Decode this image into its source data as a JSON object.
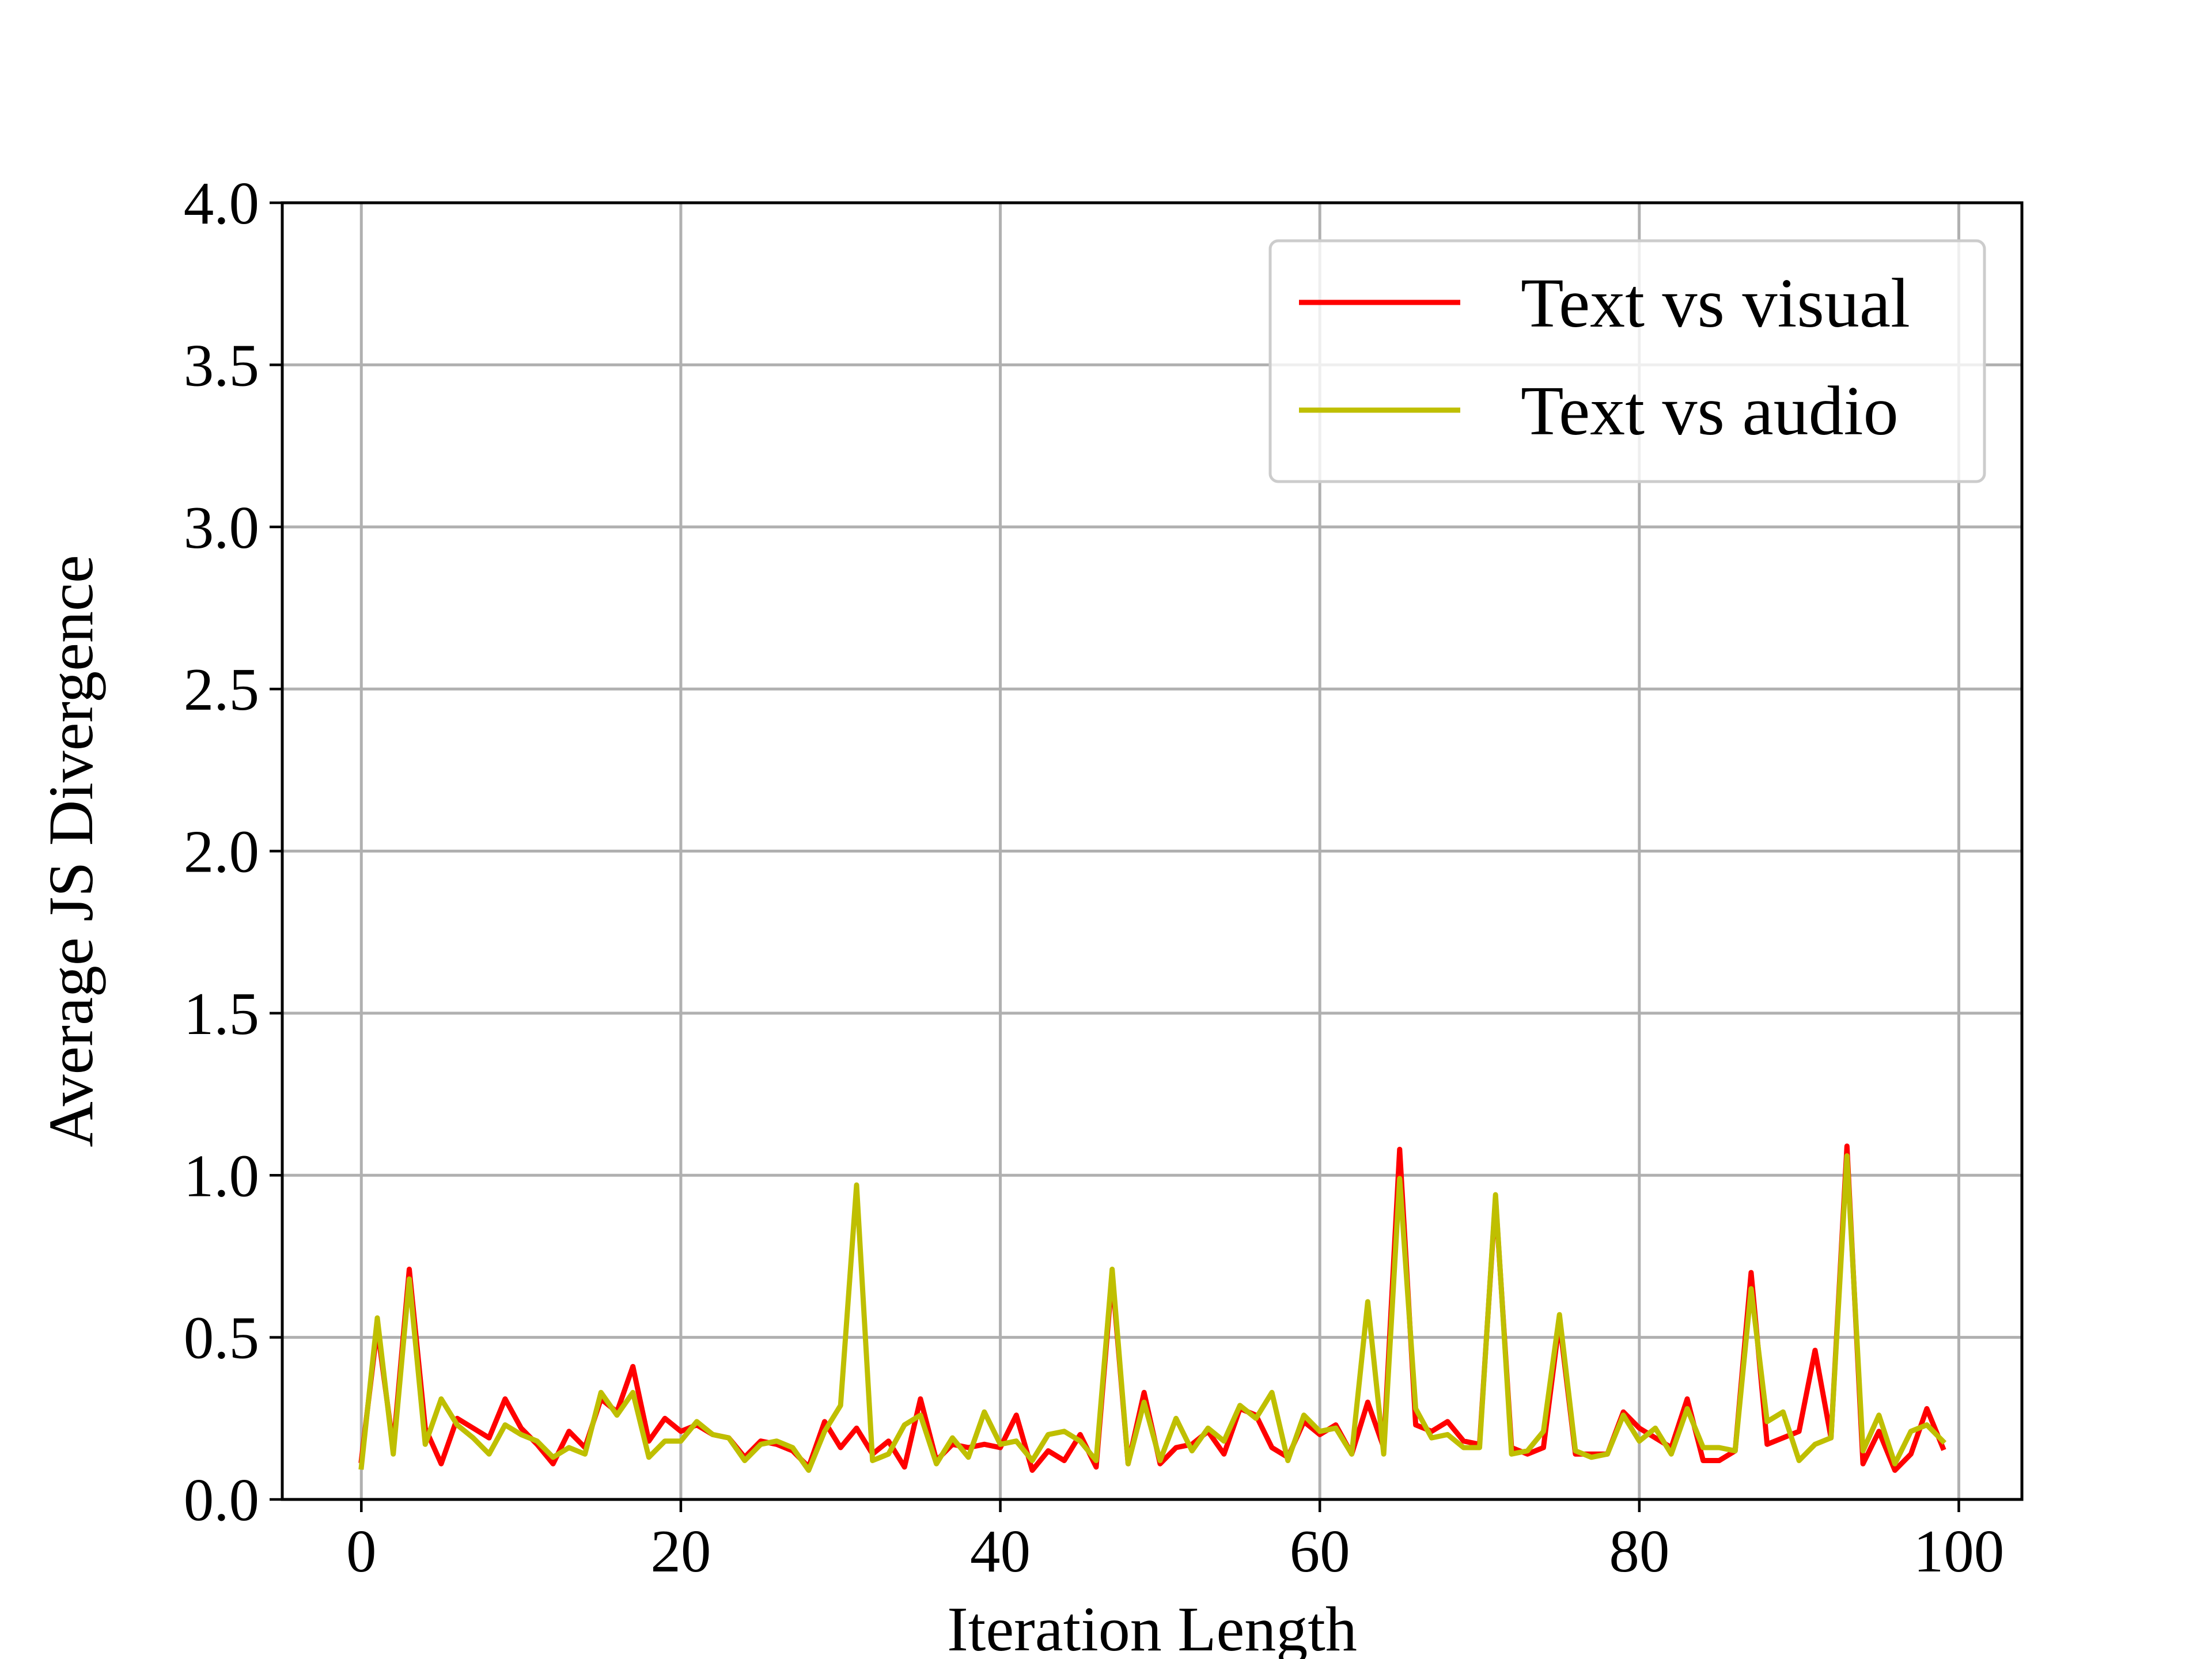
{
  "chart_data": {
    "type": "line",
    "title": "",
    "xlabel": "Iteration Length",
    "ylabel": "Average JS Divergence",
    "xlim": [
      -4.95,
      103.95
    ],
    "ylim": [
      0.0,
      4.0
    ],
    "xticks": [
      0,
      20,
      40,
      60,
      80,
      100
    ],
    "xtick_labels": [
      "0",
      "20",
      "40",
      "60",
      "80",
      "100"
    ],
    "yticks": [
      0.0,
      0.5,
      1.0,
      1.5,
      2.0,
      2.5,
      3.0,
      3.5,
      4.0
    ],
    "ytick_labels": [
      "0.0",
      "0.5",
      "1.0",
      "1.5",
      "2.0",
      "2.5",
      "3.0",
      "3.5",
      "4.0"
    ],
    "grid": true,
    "legend_position": "top-right",
    "x": [
      0,
      1,
      2,
      3,
      4,
      5,
      6,
      7,
      8,
      9,
      10,
      11,
      12,
      13,
      14,
      15,
      16,
      17,
      18,
      19,
      20,
      21,
      22,
      23,
      24,
      25,
      26,
      27,
      28,
      29,
      30,
      31,
      32,
      33,
      34,
      35,
      36,
      37,
      38,
      39,
      40,
      41,
      42,
      43,
      44,
      45,
      46,
      47,
      48,
      49,
      50,
      51,
      52,
      53,
      54,
      55,
      56,
      57,
      58,
      59,
      60,
      61,
      62,
      63,
      64,
      65,
      66,
      67,
      68,
      69,
      70,
      71,
      72,
      73,
      74,
      75,
      76,
      77,
      78,
      79,
      80,
      81,
      82,
      83,
      84,
      85,
      86,
      87,
      88,
      89,
      90,
      91,
      92,
      93,
      94,
      95,
      96,
      97,
      98,
      99
    ],
    "series": [
      {
        "name": "Text vs visual",
        "color": "#ff0000",
        "values": [
          0.12,
          0.53,
          0.16,
          0.71,
          0.22,
          0.11,
          0.25,
          0.22,
          0.19,
          0.31,
          0.22,
          0.17,
          0.11,
          0.21,
          0.16,
          0.31,
          0.27,
          0.41,
          0.18,
          0.25,
          0.21,
          0.23,
          0.2,
          0.19,
          0.13,
          0.18,
          0.17,
          0.15,
          0.1,
          0.24,
          0.16,
          0.22,
          0.14,
          0.18,
          0.1,
          0.31,
          0.12,
          0.17,
          0.16,
          0.17,
          0.16,
          0.26,
          0.09,
          0.15,
          0.12,
          0.2,
          0.1,
          0.69,
          0.11,
          0.33,
          0.11,
          0.16,
          0.17,
          0.21,
          0.14,
          0.28,
          0.26,
          0.16,
          0.13,
          0.24,
          0.2,
          0.23,
          0.14,
          0.3,
          0.16,
          1.08,
          0.23,
          0.21,
          0.24,
          0.18,
          0.17,
          0.93,
          0.16,
          0.14,
          0.16,
          0.55,
          0.14,
          0.14,
          0.14,
          0.27,
          0.22,
          0.19,
          0.16,
          0.31,
          0.12,
          0.12,
          0.15,
          0.7,
          0.17,
          0.19,
          0.21,
          0.46,
          0.19,
          1.09,
          0.11,
          0.21,
          0.09,
          0.14,
          0.28,
          0.16
        ]
      },
      {
        "name": "Text vs audio",
        "color": "#bfbf00",
        "values": [
          0.1,
          0.56,
          0.14,
          0.68,
          0.17,
          0.31,
          0.23,
          0.19,
          0.14,
          0.23,
          0.2,
          0.18,
          0.13,
          0.16,
          0.14,
          0.33,
          0.26,
          0.33,
          0.13,
          0.18,
          0.18,
          0.24,
          0.2,
          0.19,
          0.12,
          0.17,
          0.18,
          0.16,
          0.09,
          0.21,
          0.29,
          0.97,
          0.12,
          0.14,
          0.23,
          0.26,
          0.11,
          0.19,
          0.13,
          0.27,
          0.17,
          0.18,
          0.12,
          0.2,
          0.21,
          0.18,
          0.12,
          0.71,
          0.11,
          0.3,
          0.12,
          0.25,
          0.15,
          0.22,
          0.18,
          0.29,
          0.25,
          0.33,
          0.12,
          0.26,
          0.21,
          0.22,
          0.14,
          0.61,
          0.14,
          0.99,
          0.28,
          0.19,
          0.2,
          0.16,
          0.16,
          0.94,
          0.14,
          0.15,
          0.21,
          0.57,
          0.15,
          0.13,
          0.14,
          0.26,
          0.18,
          0.22,
          0.14,
          0.28,
          0.16,
          0.16,
          0.15,
          0.65,
          0.24,
          0.27,
          0.12,
          0.17,
          0.19,
          1.06,
          0.15,
          0.26,
          0.11,
          0.21,
          0.23,
          0.18
        ]
      }
    ]
  }
}
